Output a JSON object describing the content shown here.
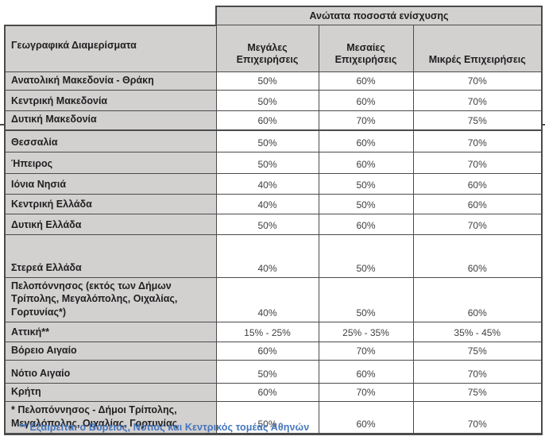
{
  "table": {
    "span_header": "Ανώτατα ποσοστά ενίσχυσης",
    "col_headers": [
      "Γεωγραφικά Διαμερίσματα",
      "Μεγάλες Επιχειρήσεις",
      "Μεσαίες Επιχειρήσεις",
      "Μικρές Επιχειρήσεις"
    ],
    "rows": [
      {
        "region": "Ανατολική Μακεδονία - Θράκη",
        "large": "50%",
        "medium": "60%",
        "small": "70%"
      },
      {
        "region": "Κεντρική Μακεδονία",
        "large": "50%",
        "medium": "60%",
        "small": "70%"
      },
      {
        "region": "Δυτική Μακεδονία",
        "large": "60%",
        "medium": "70%",
        "small": "75%"
      },
      {
        "region": "Θεσσαλία",
        "large": "50%",
        "medium": "60%",
        "small": "70%"
      },
      {
        "region": "Ήπειρος",
        "large": "50%",
        "medium": "60%",
        "small": "70%"
      },
      {
        "region": "Ιόνια Νησιά",
        "large": "40%",
        "medium": "50%",
        "small": "60%"
      },
      {
        "region": "Κεντρική Ελλάδα",
        "large": "40%",
        "medium": "50%",
        "small": "60%"
      },
      {
        "region": "Δυτική Ελλάδα",
        "large": "50%",
        "medium": "60%",
        "small": "70%"
      },
      {
        "region": "Στερεά Ελλάδα",
        "large": "40%",
        "medium": "50%",
        "small": "60%"
      },
      {
        "region": "Πελοπόννησος (εκτός των Δήμων Τρίπολης, Μεγαλόπολης, Οιχαλίας, Γορτυνίας*)",
        "large": "40%",
        "medium": "50%",
        "small": "60%"
      },
      {
        "region": "Αττική**",
        "large": "15% - 25%",
        "medium": "25% - 35%",
        "small": "35% - 45%"
      },
      {
        "region": "Βόρειο Αιγαίο",
        "large": "60%",
        "medium": "70%",
        "small": "75%"
      },
      {
        "region": "Νότιο Αιγαίο",
        "large": "50%",
        "medium": "60%",
        "small": "70%"
      },
      {
        "region": "Κρήτη",
        "large": "60%",
        "medium": "70%",
        "small": "75%"
      },
      {
        "region": "* Πελοπόννησος - Δήμοι Τρίπολης, Μεγαλόπολης, Οιχαλίας, Γορτυνίας",
        "large": "50%",
        "medium": "60%",
        "small": "70%"
      }
    ],
    "footnote": "** Εξαιρείται ο Βόρειος, Νότιος και Κεντρικός τομέας Αθηνών"
  },
  "colors": {
    "cell_gray": "#d3d0d0",
    "border": "#4b4b4b",
    "heading_text": "#1f1f1f",
    "value_text": "#3f3f3f",
    "footnote_blue": "#4476bd",
    "background": "#ffffff"
  }
}
